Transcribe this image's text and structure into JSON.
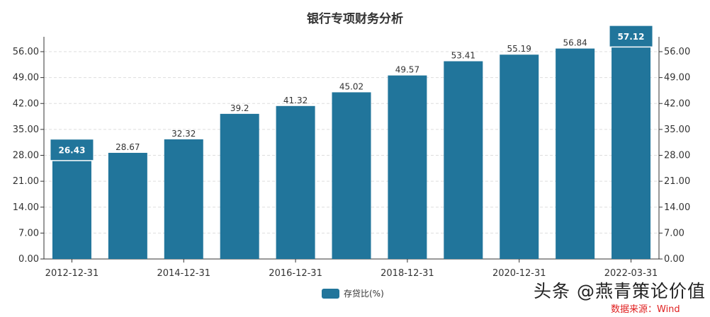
{
  "chart_data": {
    "type": "bar",
    "title": "银行专项财务分析",
    "categories": [
      "2012-12-31",
      "",
      "2014-12-31",
      "",
      "2016-12-31",
      "",
      "2018-12-31",
      "",
      "2020-12-31",
      "",
      "2022-03-31"
    ],
    "series": [
      {
        "name": "存贷比(%)",
        "values": [
          26.43,
          28.67,
          32.32,
          39.2,
          41.32,
          45.02,
          49.57,
          53.41,
          55.19,
          56.84,
          57.12
        ],
        "color": "#21759b"
      }
    ],
    "yticks": [
      "0.00",
      "7.00",
      "14.00",
      "21.00",
      "28.00",
      "35.00",
      "42.00",
      "49.00",
      "56.00"
    ],
    "ylim": [
      0,
      56
    ],
    "grid": true,
    "dual_y_axis": true,
    "highlighted": {
      "min": 26.43,
      "max": 57.12
    },
    "legend": "bottom"
  },
  "watermark": "头条 @燕青策论价值",
  "source": "数据来源：Wind"
}
